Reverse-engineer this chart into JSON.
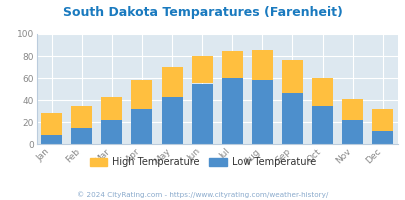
{
  "title": "South Dakota Temparatures (Farenheit)",
  "months": [
    "Jan",
    "Feb",
    "Mar",
    "Apr",
    "May",
    "Jun",
    "Jul",
    "Aug",
    "Sep",
    "Oct",
    "Nov",
    "Dec"
  ],
  "low_temps": [
    8,
    15,
    22,
    32,
    43,
    55,
    60,
    58,
    46,
    35,
    22,
    12
  ],
  "high_temps": [
    28,
    35,
    43,
    58,
    70,
    80,
    85,
    85,
    76,
    60,
    41,
    32
  ],
  "low_color": "#4d8fcc",
  "high_color": "#ffbf3f",
  "bg_color": "#dde8f0",
  "title_color": "#1a7abf",
  "axis_color": "#888888",
  "legend_text_color": "#333333",
  "grid_color": "#ffffff",
  "legend_labels": [
    "High Temperature",
    "Low Temperature"
  ],
  "ylabel_ticks": [
    0,
    20,
    40,
    60,
    80,
    100
  ],
  "ylim": [
    0,
    100
  ],
  "footer": "© 2024 CityRating.com - https://www.cityrating.com/weather-history/",
  "footer_color": "#8aaacc"
}
